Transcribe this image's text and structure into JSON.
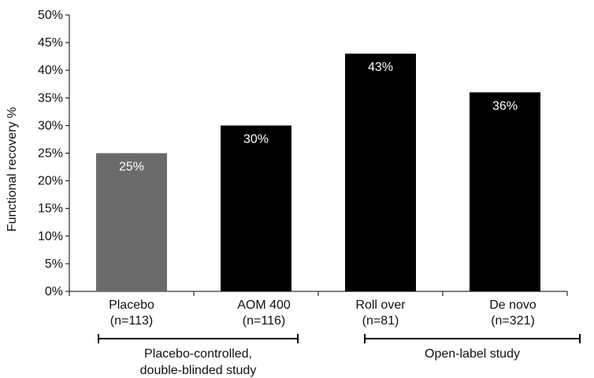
{
  "chart_data": {
    "type": "bar",
    "title": "",
    "xlabel": "",
    "ylabel": "Functional recovery %",
    "ylim": [
      0,
      50
    ],
    "ytick_step": 5,
    "ytick_labels": [
      "0%",
      "5%",
      "10%",
      "15%",
      "20%",
      "25%",
      "30%",
      "35%",
      "40%",
      "45%",
      "50%"
    ],
    "categories": [
      {
        "line1": "Placebo",
        "line2": "(n=113)"
      },
      {
        "line1": "AOM 400",
        "line2": "(n=116)"
      },
      {
        "line1": "Roll over",
        "line2": "(n=81)"
      },
      {
        "line1": "De novo",
        "line2": "(n=321)"
      }
    ],
    "values": [
      25,
      30,
      43,
      36
    ],
    "data_labels": [
      "25%",
      "30%",
      "43%",
      "36%"
    ],
    "bar_colors": [
      "#6b6b6b",
      "#000000",
      "#000000",
      "#000000"
    ],
    "groups": [
      {
        "lines": [
          "Placebo-controlled,",
          "double-blinded study"
        ],
        "first_category": 0,
        "last_category": 1
      },
      {
        "lines": [
          "Open-label study"
        ],
        "first_category": 2,
        "last_category": 3
      }
    ],
    "grid": false,
    "legend": "none"
  }
}
